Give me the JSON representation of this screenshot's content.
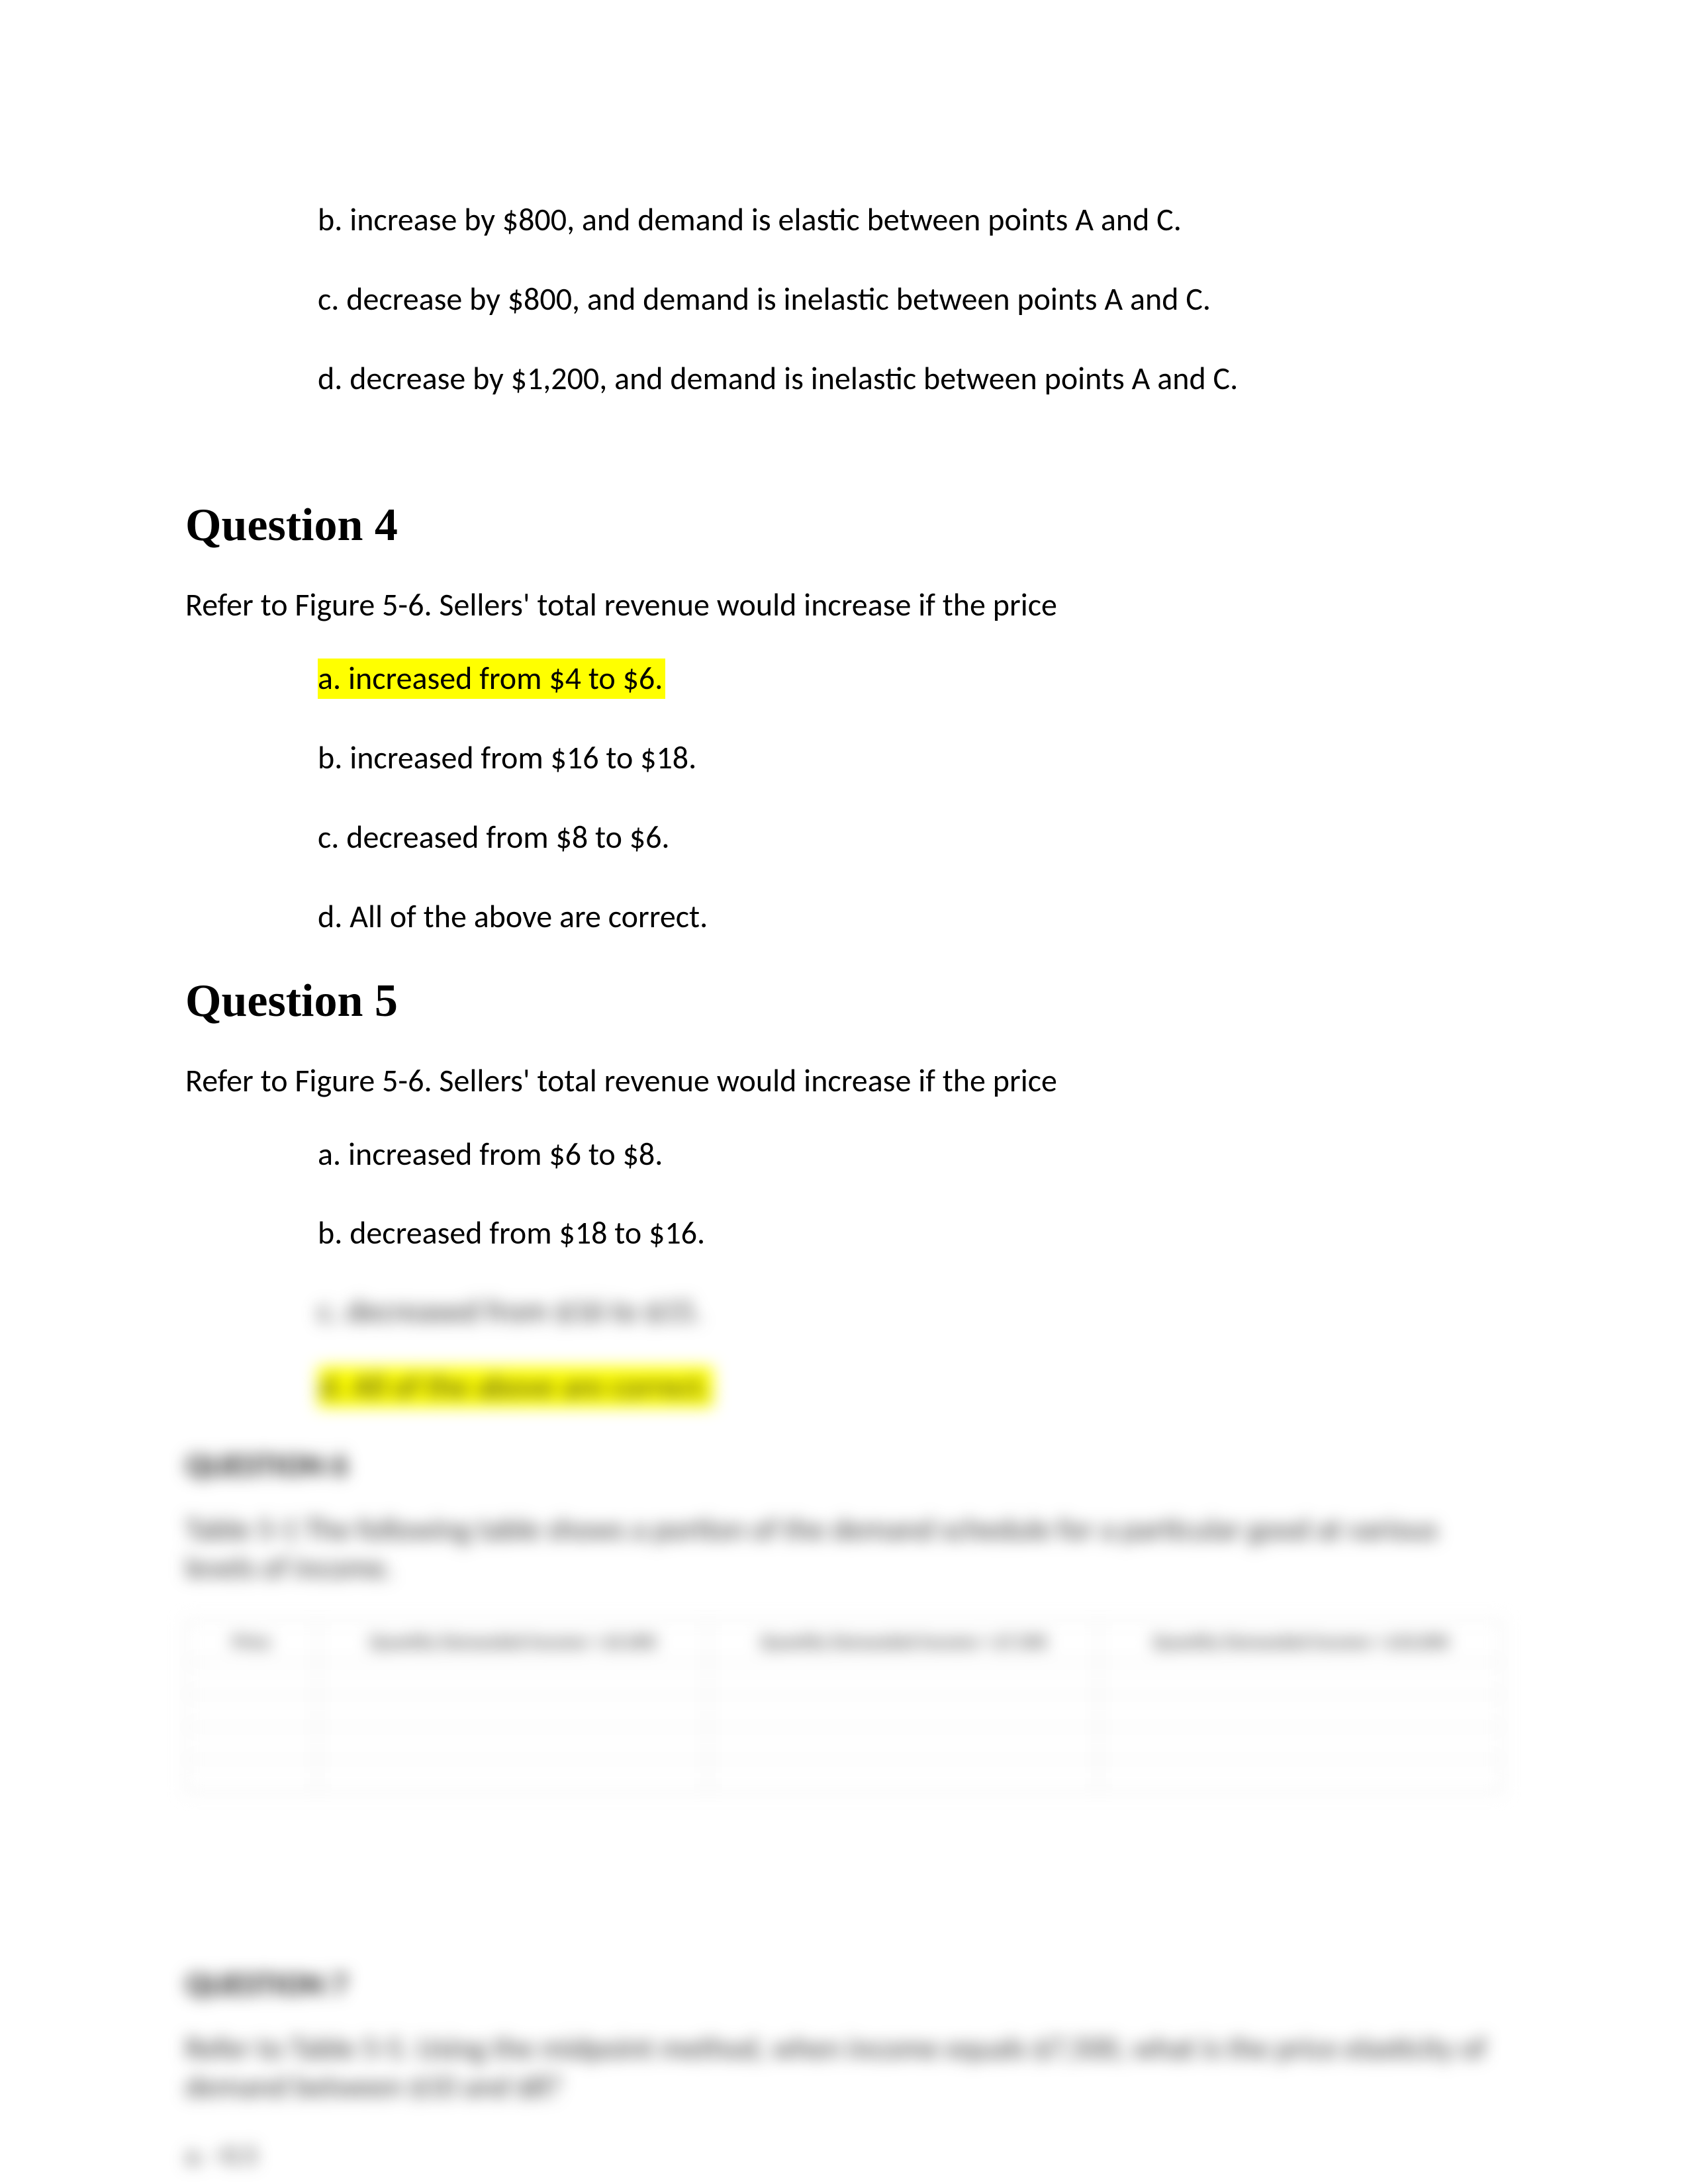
{
  "prev_question": {
    "options": [
      "b. increase by $800, and demand is elastic between points A and C.",
      "c.  decrease by $800, and demand is inelastic between points A and C.",
      "d. decrease by $1,200, and demand is inelastic between points A and C."
    ]
  },
  "question4": {
    "heading": "Question 4",
    "stem": "Refer to Figure 5-6. Sellers' total revenue would increase if the price",
    "options": [
      "a.  increased from $4 to $6.",
      "b. increased from $16 to $18.",
      "c. decreased from $8 to $6.",
      "d. All of the above are correct."
    ],
    "highlighted_index": 0
  },
  "question5": {
    "heading": "Question 5",
    "stem": "Refer to Figure 5-6. Sellers' total revenue would increase if the price",
    "options": [
      "a. increased from $6 to $8.",
      "b. decreased from $18 to $16."
    ]
  },
  "blurred": {
    "option_c": "c. decreased from $16 to $15.",
    "option_d": "d. All of the above are correct.",
    "q6_heading": "QUESTION 6",
    "q6_para": "Table 5-1 The following table shows a portion of the demand schedule for a particular good at various levels of income.",
    "table_headers": [
      "Price",
      "Quantity Demanded Income = $5,000",
      "Quantity Demanded Income = $7,500",
      "Quantity Demanded Income = $10,000"
    ],
    "q7_heading": "QUESTION 7",
    "q7_para": "Refer to Table 5-5.  Using the midpoint method, when income equals $7,500, what is the price elasticity of demand between $10 and $8?",
    "q7_small": "a.  −0.5"
  }
}
